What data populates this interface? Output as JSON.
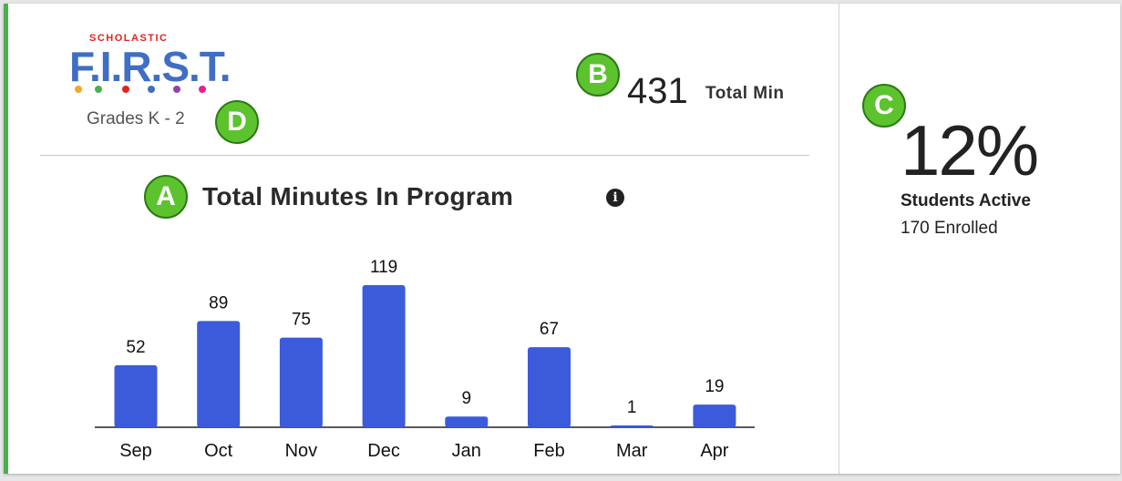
{
  "logo": {
    "brand": "SCHOLASTIC",
    "product": "F.I.R.S.T.",
    "dot_colors": [
      "#f5a623",
      "#4caf50",
      "#e2231a",
      "#3f6ec5",
      "#8e44ad",
      "#e91e8c"
    ]
  },
  "header": {
    "grades": "Grades K - 2",
    "total_min_value": "431",
    "total_min_label": "Total Min"
  },
  "badges": {
    "a": "A",
    "b": "B",
    "c": "C",
    "d": "D"
  },
  "chart_title": "Total Minutes In Program",
  "info_icon": "info-icon",
  "stats": {
    "percent": "12%",
    "students_active": "Students Active",
    "enrolled": "170 Enrolled"
  },
  "colors": {
    "accent_green": "#4caf50",
    "bar_blue": "#3b5bdb",
    "badge_green": "#5cc32e"
  },
  "chart_data": {
    "type": "bar",
    "title": "Total Minutes In Program",
    "categories": [
      "Sep",
      "Oct",
      "Nov",
      "Dec",
      "Jan",
      "Feb",
      "Mar",
      "Apr"
    ],
    "values": [
      52,
      89,
      75,
      119,
      9,
      67,
      1,
      19
    ],
    "ylim": [
      0,
      119
    ],
    "grid": false,
    "data_labels": true
  }
}
